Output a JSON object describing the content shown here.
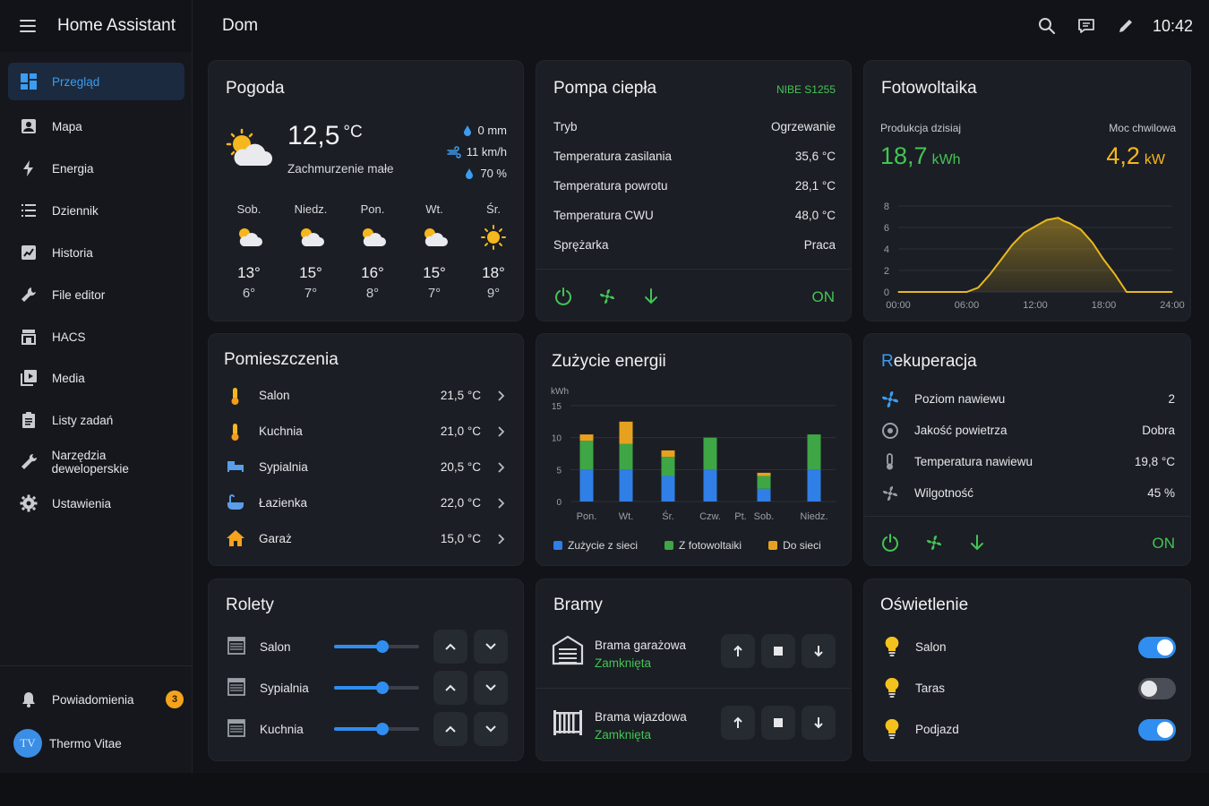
{
  "app": {
    "title": "Home Assistant",
    "page_title": "Dom",
    "time": "10:42"
  },
  "sidebar": {
    "items": [
      {
        "label": "Przegląd",
        "icon": "dashboard-icon"
      },
      {
        "label": "Mapa",
        "icon": "map-icon"
      },
      {
        "label": "Energia",
        "icon": "lightning-icon"
      },
      {
        "label": "Dziennik",
        "icon": "list-icon"
      },
      {
        "label": "Historia",
        "icon": "chart-box-icon"
      },
      {
        "label": "File editor",
        "icon": "wrench-icon"
      },
      {
        "label": "HACS",
        "icon": "store-icon"
      },
      {
        "label": "Media",
        "icon": "media-icon"
      },
      {
        "label": "Listy zadań",
        "icon": "clipboard-icon"
      },
      {
        "label": "Narzędzia deweloperskie",
        "icon": "hammer-icon"
      },
      {
        "label": "Ustawienia",
        "icon": "cog-icon"
      }
    ],
    "notifications": {
      "label": "Powiadomienia",
      "count": "3"
    },
    "user": {
      "name": "Thermo Vitae",
      "initials": "TV"
    }
  },
  "weather": {
    "title": "Pogoda",
    "temp": "12,5",
    "unit": "°C",
    "condition": "Zachmurzenie małe",
    "precip": "0 mm",
    "wind": "11 km/h",
    "humidity": "70 %",
    "forecast": [
      {
        "day": "Sob.",
        "hi": "13°",
        "lo": "6°",
        "icon": "partly-cloudy-icon"
      },
      {
        "day": "Niedz.",
        "hi": "15°",
        "lo": "7°",
        "icon": "partly-cloudy-icon"
      },
      {
        "day": "Pon.",
        "hi": "16°",
        "lo": "8°",
        "icon": "partly-cloudy-icon"
      },
      {
        "day": "Wt.",
        "hi": "15°",
        "lo": "7°",
        "icon": "partly-cloudy-icon"
      },
      {
        "day": "Śr.",
        "hi": "18°",
        "lo": "9°",
        "icon": "sun-icon"
      }
    ]
  },
  "heatpump": {
    "title": "Pompa ciepła",
    "model": "NIBE S1255",
    "rows": [
      {
        "label": "Tryb",
        "value": "Ogrzewanie",
        "accent": true
      },
      {
        "label": "Temperatura zasilania",
        "value": "35,6 °C",
        "accent": false
      },
      {
        "label": "Temperatura powrotu",
        "value": "28,1 °C",
        "accent": false
      },
      {
        "label": "Temperatura CWU",
        "value": "48,0 °C",
        "accent": false
      },
      {
        "label": "Sprężarka",
        "value": "Praca",
        "accent": true
      }
    ],
    "state": "ON"
  },
  "pv": {
    "title": "Fotowoltaika",
    "today_label": "Produkcja dzisiaj",
    "today_value": "18,7",
    "today_unit": "kWh",
    "power_label": "Moc chwilowa",
    "power_value": "4,2",
    "power_unit": "kW",
    "chart_data": {
      "type": "area",
      "x_ticks": [
        "00:00",
        "06:00",
        "12:00",
        "18:00",
        "24:00"
      ],
      "y_ticks": [
        "0",
        "2",
        "4",
        "6",
        "8"
      ],
      "ylim": [
        0,
        8
      ],
      "xlim": [
        0,
        24
      ],
      "x": [
        0,
        6,
        7,
        8,
        9,
        10,
        11,
        12,
        13,
        14,
        14.5,
        15,
        16,
        17,
        18,
        19,
        20,
        24
      ],
      "y": [
        0,
        0,
        0.4,
        1.6,
        3.0,
        4.4,
        5.5,
        6.1,
        6.7,
        6.9,
        6.6,
        6.4,
        5.8,
        4.6,
        3.0,
        1.6,
        0,
        0
      ],
      "color": "#e7b822"
    }
  },
  "rooms": {
    "title": "Pomieszczenia",
    "items": [
      {
        "name": "Salon",
        "value": "21,5 °C",
        "icon": "thermometer-icon"
      },
      {
        "name": "Kuchnia",
        "value": "21,0 °C",
        "icon": "thermometer-icon"
      },
      {
        "name": "Sypialnia",
        "value": "20,5 °C",
        "icon": "bed-icon"
      },
      {
        "name": "Łazienka",
        "value": "22,0 °C",
        "icon": "bathtub-icon"
      },
      {
        "name": "Garaż",
        "value": "15,0 °C",
        "icon": "home-icon"
      }
    ]
  },
  "energy": {
    "title": "Zużycie energii",
    "chart_data": {
      "type": "bar",
      "unit": "kWh",
      "categories": [
        "Pon.",
        "Wt.",
        "Śr.",
        "Czw.",
        "Pt.",
        "Sob.",
        "Niedz."
      ],
      "ylim": [
        0,
        15
      ],
      "y_ticks": [
        "0",
        "5",
        "10",
        "15"
      ],
      "series": [
        {
          "name": "Zużycie z sieci",
          "color": "#2f7fe6",
          "values": [
            5,
            5,
            4,
            5,
            0,
            2,
            5
          ]
        },
        {
          "name": "Z fotowoltaiki",
          "color": "#3fa646",
          "values": [
            4.5,
            4,
            3,
            5,
            0,
            2,
            5.5
          ]
        },
        {
          "name": "Do sieci",
          "color": "#e6a21f",
          "values": [
            1,
            3.5,
            1,
            0,
            0,
            0.5,
            0
          ]
        }
      ]
    }
  },
  "recuperation": {
    "title_first": "R",
    "title_rest": "ekuperacja",
    "rows": [
      {
        "label": "Poziom nawiewu",
        "value": "2",
        "accent": false,
        "icon": "fan-icon"
      },
      {
        "label": "Jakość powietrza",
        "value": "Dobra",
        "accent": true,
        "icon": "air-filter-icon"
      },
      {
        "label": "Temperatura nawiewu",
        "value": "19,8 °C",
        "accent": false,
        "icon": "thermometer-fan-icon"
      },
      {
        "label": "Wilgotność",
        "value": "45 %",
        "accent": false,
        "icon": "humidity-icon"
      }
    ],
    "state": "ON"
  },
  "blinds": {
    "title": "Rolety",
    "items": [
      {
        "name": "Salon",
        "position": 0.57
      },
      {
        "name": "Sypialnia",
        "position": 0.57
      },
      {
        "name": "Kuchnia",
        "position": 0.57
      }
    ]
  },
  "gates": {
    "title": "Bramy",
    "items": [
      {
        "name": "Brama garażowa",
        "state": "Zamknięta",
        "icon": "garage-icon"
      },
      {
        "name": "Brama wjazdowa",
        "state": "Zamknięta",
        "icon": "gate-icon"
      }
    ]
  },
  "lights": {
    "title": "Oświetlenie",
    "items": [
      {
        "name": "Salon",
        "on": true
      },
      {
        "name": "Taras",
        "on": false
      },
      {
        "name": "Podjazd",
        "on": true
      }
    ]
  }
}
